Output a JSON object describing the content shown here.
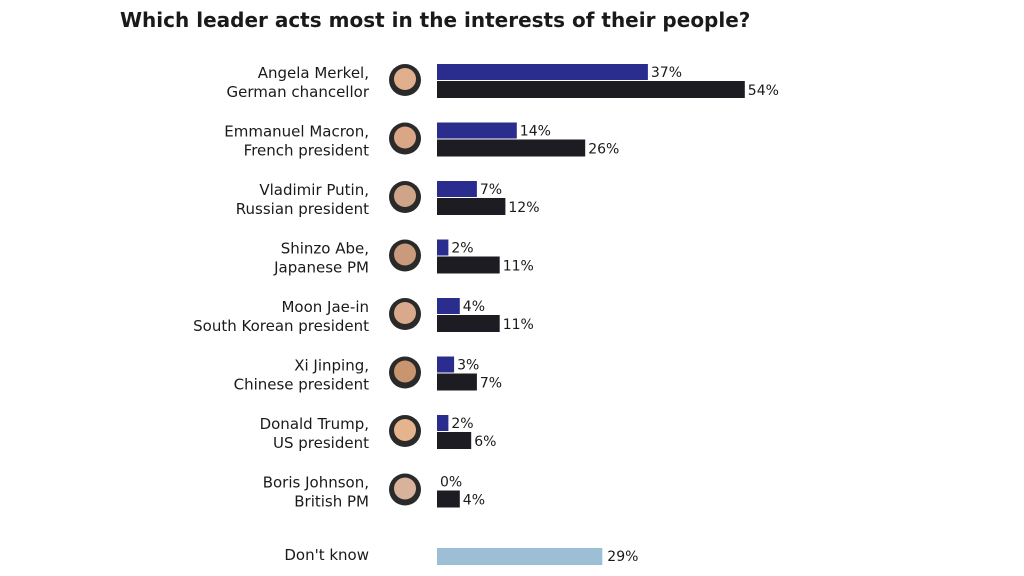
{
  "chart_data": {
    "type": "bar",
    "title": "Which leader acts most in the interests of their people?",
    "xlabel": "",
    "ylabel": "",
    "grid": false,
    "legend": "none",
    "categories": [
      [
        "Angela Merkel,",
        "German chancellor"
      ],
      [
        "Emmanuel Macron,",
        "French president"
      ],
      [
        "Vladimir Putin,",
        "Russian president"
      ],
      [
        "Shinzo Abe,",
        "Japanese PM"
      ],
      [
        "Moon Jae-in",
        "South Korean president"
      ],
      [
        "Xi Jinping,",
        "Chinese president"
      ],
      [
        "Donald Trump,",
        "US president"
      ],
      [
        "Boris Johnson,",
        "British PM"
      ]
    ],
    "series": [
      {
        "values": [
          37,
          14,
          7,
          2,
          4,
          3,
          2,
          0
        ],
        "labels": [
          "37%",
          "14%",
          "7%",
          "2%",
          "4%",
          "3%",
          "2%",
          "0%"
        ],
        "color": "#2b2d8e"
      },
      {
        "values": [
          54,
          26,
          12,
          11,
          11,
          7,
          6,
          4
        ],
        "labels": [
          "54%",
          "26%",
          "12%",
          "11%",
          "11%",
          "7%",
          "6%",
          "4%"
        ],
        "color": "#1c1c22"
      }
    ],
    "dont_know": {
      "label": "Don't know",
      "value": 29,
      "value_label": "29%",
      "color": "#9cbfd6"
    }
  }
}
